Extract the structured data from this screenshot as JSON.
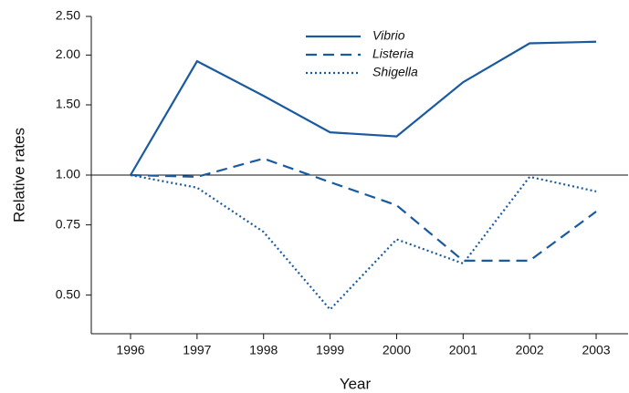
{
  "chart_data": {
    "type": "line",
    "x_label": "Year",
    "y_label": "Relative rates",
    "categories": [
      "1996",
      "1997",
      "1998",
      "1999",
      "2000",
      "2001",
      "2002",
      "2003"
    ],
    "series": [
      {
        "name": "Vibrio",
        "color": "#1a5a9e",
        "dash": "solid",
        "values": [
          1.0,
          1.93,
          1.58,
          1.28,
          1.25,
          1.71,
          2.14,
          2.16
        ]
      },
      {
        "name": "Listeria",
        "color": "#1a5a9e",
        "dash": "dashed",
        "values": [
          1.0,
          0.99,
          1.1,
          0.96,
          0.84,
          0.61,
          0.61,
          0.81
        ]
      },
      {
        "name": "Shigella",
        "color": "#1a5a9e",
        "dash": "dotted",
        "values": [
          1.0,
          0.93,
          0.72,
          0.46,
          0.69,
          0.6,
          0.99,
          0.91
        ]
      }
    ],
    "log_scale_y": true,
    "ylim": [
      0.4,
      2.5
    ],
    "yticks": [
      {
        "value": 0.5,
        "label": "0.50"
      },
      {
        "value": 0.75,
        "label": "0.75"
      },
      {
        "value": 1,
        "label": "1.00"
      },
      {
        "value": 1.5,
        "label": "1.50"
      },
      {
        "value": 2,
        "label": "2.00"
      },
      {
        "value": 2.5,
        "label": "2.50"
      }
    ],
    "reference_line": 1,
    "legend": "top"
  }
}
